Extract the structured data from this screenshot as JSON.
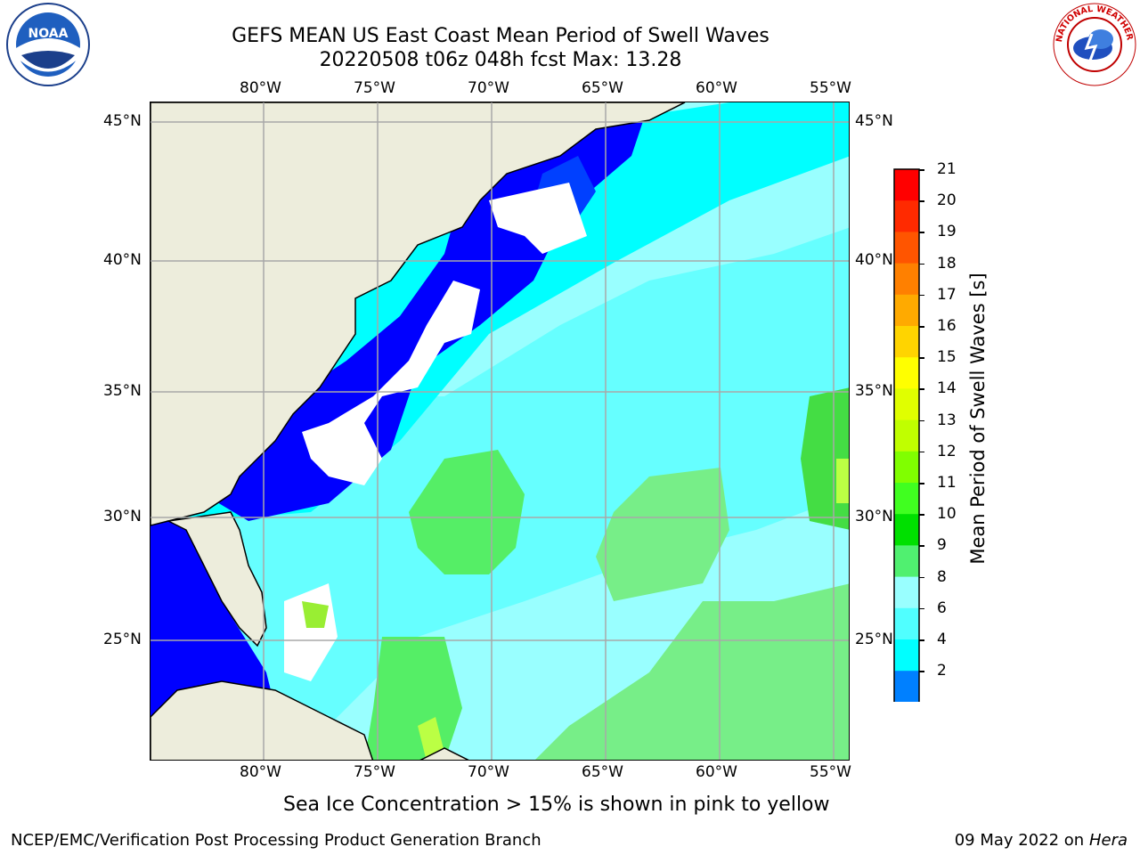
{
  "header": {
    "title_line1": "GEFS MEAN US East Coast Mean Period of Swell Waves",
    "title_line2": "20220508 t06z 048h fcst   Max: 13.28"
  },
  "logos": {
    "left": {
      "name": "noaa-logo",
      "text": "NOAA"
    },
    "right": {
      "name": "nws-logo",
      "text": "NATIONAL WEATHER SERVICE"
    }
  },
  "map": {
    "lon_labels": [
      "80°W",
      "75°W",
      "70°W",
      "65°W",
      "60°W",
      "55°W"
    ],
    "lat_labels_left": [
      "45°N",
      "40°N",
      "35°N",
      "30°N",
      "25°N"
    ],
    "lat_labels_right": [
      "45°N",
      "40°N",
      "35°N",
      "30°N",
      "25°N"
    ]
  },
  "colorbar": {
    "label": "Mean Period of Swell Waves [s]",
    "ticks": [
      "21",
      "20",
      "19",
      "18",
      "17",
      "16",
      "15",
      "14",
      "13",
      "12",
      "11",
      "10",
      "9",
      "8",
      "6",
      "4",
      "2"
    ],
    "colors": [
      "#ff0000",
      "#ff2a00",
      "#ff5500",
      "#ff8000",
      "#ffaa00",
      "#ffd400",
      "#ffff00",
      "#e0ff00",
      "#c0ff00",
      "#80ff00",
      "#40ff20",
      "#00e000",
      "#50f070",
      "#99ffff",
      "#50ffff",
      "#00ffff",
      "#0080ff",
      "#0000ff"
    ]
  },
  "footer": {
    "note": "Sea Ice Concentration > 15% is shown in pink to yellow",
    "credit": "NCEP/EMC/Verification Post Processing Product Generation Branch",
    "date": "09 May 2022 on",
    "machine": "Hera"
  }
}
